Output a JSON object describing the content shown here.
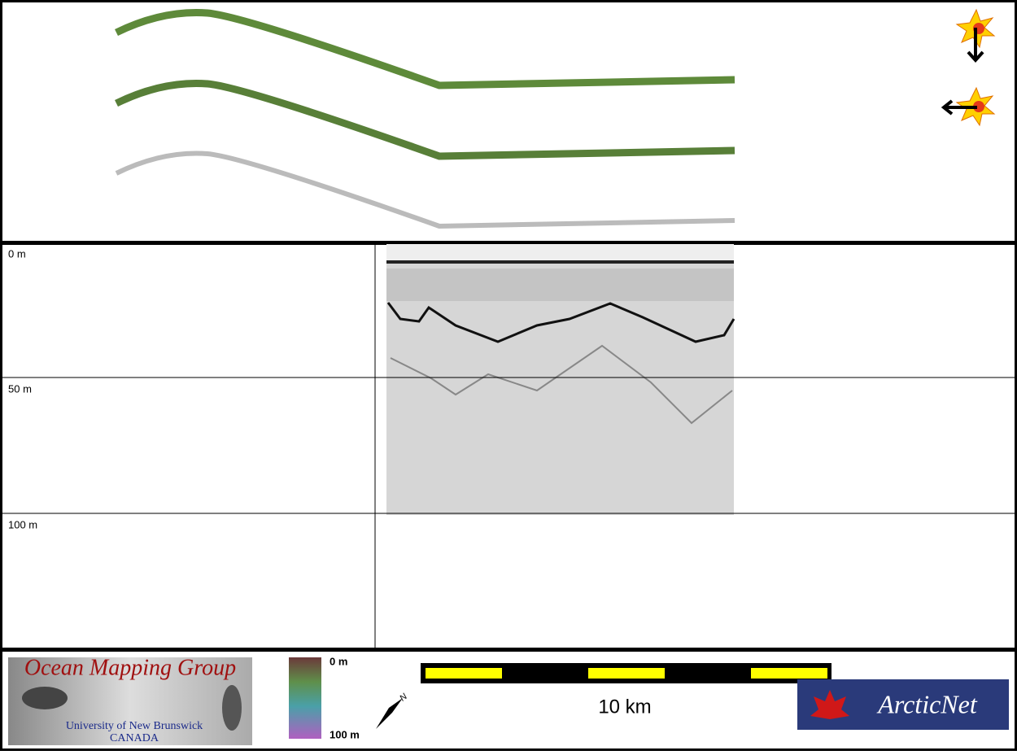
{
  "profile_panel": {
    "depth_labels": [
      "0 m",
      "50 m",
      "100 m"
    ]
  },
  "legend": {
    "colorbar_top": "0 m",
    "colorbar_bottom": "100 m",
    "scale_bar": "10 km",
    "north": "N"
  },
  "logos": {
    "omg_title": "Ocean Mapping Group",
    "omg_university": "University of New Brunswick",
    "omg_country": "CANADA",
    "arcticnet": "ArcticNet"
  }
}
